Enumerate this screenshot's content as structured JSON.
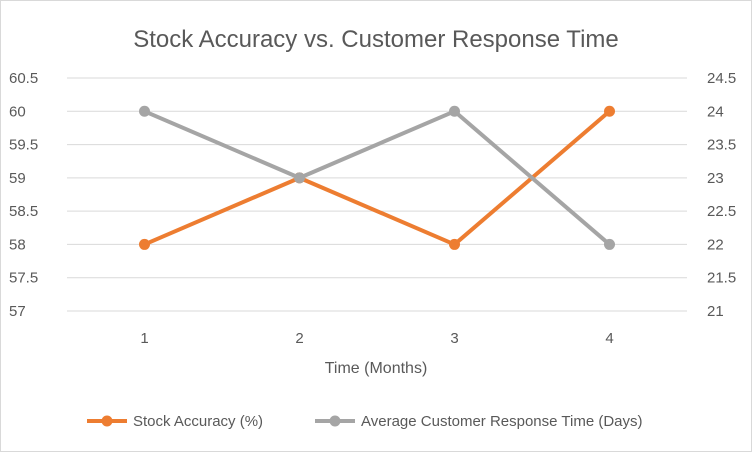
{
  "chart_data": {
    "type": "line",
    "title": "Stock Accuracy vs. Customer Response Time",
    "xlabel": "Time (Months)",
    "categories": [
      "1",
      "2",
      "3",
      "4"
    ],
    "y_left": {
      "range": [
        57,
        60.5
      ],
      "ticks": [
        "57",
        "57.5",
        "58",
        "58.5",
        "59",
        "59.5",
        "60",
        "60.5"
      ]
    },
    "y_right": {
      "range": [
        21,
        24.5
      ],
      "ticks": [
        "21",
        "21.5",
        "22",
        "22.5",
        "23",
        "23.5",
        "24",
        "24.5"
      ]
    },
    "grid": true,
    "legend_position": "bottom",
    "series": [
      {
        "name": "Stock Accuracy (%)",
        "axis": "left",
        "color": "#ed7d31",
        "values": [
          58,
          59,
          58,
          60
        ]
      },
      {
        "name": "Average Customer Response Time (Days)",
        "axis": "right",
        "color": "#a5a5a5",
        "values": [
          24,
          23,
          24,
          22
        ]
      }
    ]
  }
}
